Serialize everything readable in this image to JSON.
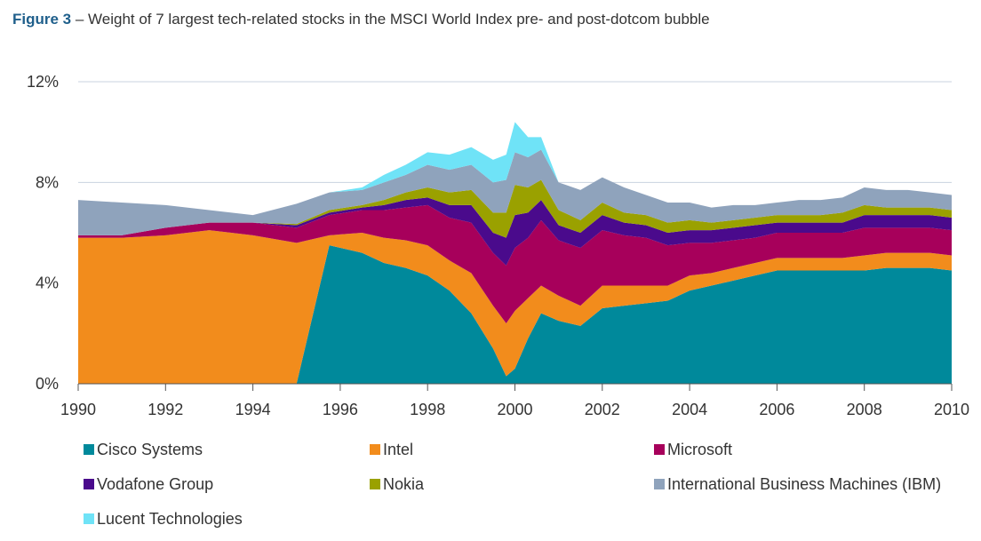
{
  "figure": {
    "label": "Figure  3",
    "caption": " – Weight of 7 largest tech-related stocks in the MSCI World Index pre- and post-dotcom bubble"
  },
  "chart_data": {
    "type": "area",
    "stacked": true,
    "xlim": [
      1990,
      2010
    ],
    "ylim": [
      0,
      12
    ],
    "x_ticks": [
      1990,
      1992,
      1994,
      1996,
      1998,
      2000,
      2002,
      2004,
      2006,
      2008,
      2010
    ],
    "y_ticks": [
      0,
      4,
      8,
      12
    ],
    "x_tick_labels": [
      "1990",
      "1992",
      "1994",
      "1996",
      "1998",
      "2000",
      "2002",
      "2004",
      "2006",
      "2008",
      "2010"
    ],
    "y_tick_labels": [
      "0%",
      "4%",
      "8%",
      "12%"
    ],
    "grid": "horizontal",
    "x": [
      1990,
      1991,
      1992,
      1993,
      1994,
      1995,
      1995.75,
      1996.5,
      1997,
      1997.5,
      1998,
      1998.5,
      1999,
      1999.5,
      1999.8,
      2000,
      2000.3,
      2000.6,
      2001,
      2001.5,
      2002,
      2002.5,
      2003,
      2003.5,
      2004,
      2004.5,
      2005,
      2005.5,
      2006,
      2006.5,
      2007,
      2007.5,
      2008,
      2008.5,
      2009,
      2009.5,
      2010
    ],
    "series": [
      {
        "name": "Cisco Systems",
        "color": "#00899b",
        "values": [
          0,
          0,
          0,
          0,
          0,
          0,
          5.5,
          5.2,
          4.8,
          4.6,
          4.3,
          3.7,
          2.8,
          1.4,
          0.3,
          0.6,
          1.8,
          2.8,
          2.5,
          2.3,
          3.0,
          3.1,
          3.2,
          3.3,
          3.7,
          3.9,
          4.1,
          4.3,
          4.5,
          4.5,
          4.5,
          4.5,
          4.5,
          4.6,
          4.6,
          4.6,
          4.5
        ]
      },
      {
        "name": "Intel",
        "color": "#f28c1c",
        "values": [
          5.8,
          5.8,
          5.9,
          6.1,
          5.9,
          5.6,
          0.4,
          0.8,
          1.0,
          1.1,
          1.2,
          1.2,
          1.6,
          1.7,
          2.1,
          2.3,
          1.6,
          1.1,
          1.0,
          0.8,
          0.9,
          0.8,
          0.7,
          0.6,
          0.6,
          0.5,
          0.5,
          0.5,
          0.5,
          0.5,
          0.5,
          0.5,
          0.6,
          0.6,
          0.6,
          0.6,
          0.6
        ]
      },
      {
        "name": "Microsoft",
        "color": "#a7005b",
        "values": [
          0.1,
          0.1,
          0.3,
          0.3,
          0.5,
          0.6,
          0.8,
          0.9,
          1.1,
          1.3,
          1.6,
          1.7,
          2.0,
          2.1,
          2.3,
          2.5,
          2.4,
          2.6,
          2.2,
          2.3,
          2.2,
          2.0,
          1.9,
          1.6,
          1.3,
          1.2,
          1.1,
          1.0,
          1.0,
          1.0,
          1.0,
          1.0,
          1.1,
          1.0,
          1.0,
          1.0,
          1.0
        ]
      },
      {
        "name": "Vodafone Group",
        "color": "#4a0a8c",
        "values": [
          0,
          0,
          0,
          0,
          0,
          0.1,
          0.1,
          0.1,
          0.2,
          0.3,
          0.3,
          0.5,
          0.7,
          0.8,
          1.1,
          1.3,
          1.0,
          0.8,
          0.6,
          0.6,
          0.6,
          0.5,
          0.5,
          0.5,
          0.5,
          0.5,
          0.5,
          0.5,
          0.4,
          0.4,
          0.4,
          0.4,
          0.5,
          0.5,
          0.5,
          0.5,
          0.5
        ]
      },
      {
        "name": "Nokia",
        "color": "#9aa100",
        "values": [
          0,
          0,
          0,
          0,
          0,
          0.05,
          0.1,
          0.1,
          0.2,
          0.3,
          0.4,
          0.5,
          0.6,
          0.8,
          1.0,
          1.2,
          1.0,
          0.8,
          0.6,
          0.5,
          0.5,
          0.4,
          0.4,
          0.4,
          0.4,
          0.3,
          0.3,
          0.3,
          0.3,
          0.3,
          0.3,
          0.4,
          0.4,
          0.3,
          0.3,
          0.3,
          0.3
        ]
      },
      {
        "name": "International Business Machines (IBM)",
        "color": "#8fa3bc",
        "values": [
          1.4,
          1.3,
          0.9,
          0.5,
          0.3,
          0.8,
          0.7,
          0.6,
          0.7,
          0.7,
          0.9,
          0.9,
          1.0,
          1.2,
          1.3,
          1.3,
          1.2,
          1.2,
          1.1,
          1.2,
          1.0,
          1.0,
          0.8,
          0.8,
          0.7,
          0.6,
          0.6,
          0.5,
          0.5,
          0.6,
          0.6,
          0.6,
          0.7,
          0.7,
          0.7,
          0.6,
          0.6
        ]
      },
      {
        "name": "Lucent Technologies",
        "color": "#6fe3f7",
        "values": [
          0,
          0,
          0,
          0,
          0,
          0,
          0,
          0.1,
          0.3,
          0.4,
          0.5,
          0.6,
          0.7,
          0.9,
          1.0,
          1.2,
          0.8,
          0.5,
          0,
          0,
          0,
          0,
          0,
          0,
          0,
          0,
          0,
          0,
          0,
          0,
          0,
          0,
          0,
          0,
          0,
          0,
          0
        ]
      }
    ]
  }
}
